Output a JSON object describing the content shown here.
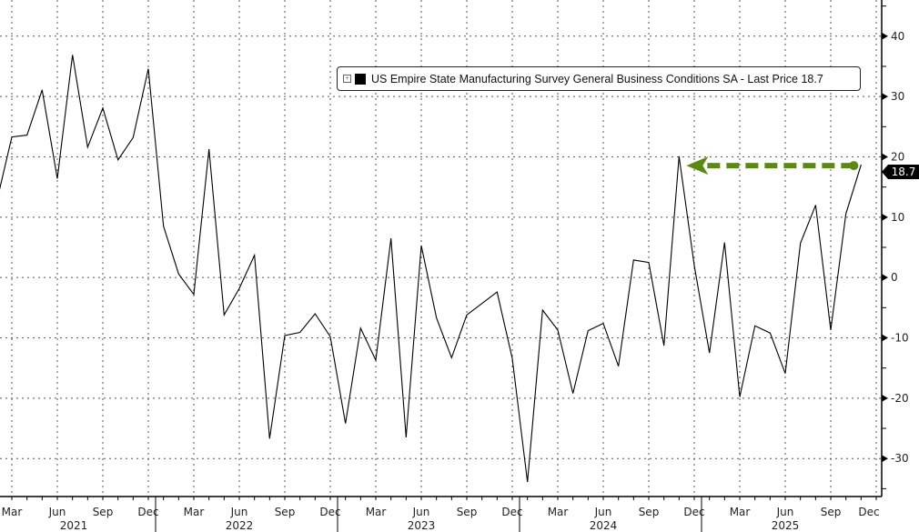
{
  "chart_data": {
    "type": "line",
    "title": "",
    "legend": {
      "label": "US Empire State Manufacturing Survey General Business Conditions SA - Last Price 18.7",
      "placement": "top-right"
    },
    "last_price_tag": "18.7",
    "ylim": [
      -36.3,
      46
    ],
    "yticks": [
      40,
      30,
      20,
      10,
      0,
      -10,
      -20,
      -30
    ],
    "y_axis_side": "right",
    "grid": true,
    "line_color": "#000000",
    "annotation": {
      "type": "dashed-arrow",
      "color": "#5b8a12",
      "from": "2025-11",
      "to": "2024-11",
      "value": 18.7
    },
    "x_start": "2021-02",
    "x_month_labels": [
      "Mar",
      "Jun",
      "Sep",
      "Dec"
    ],
    "x_year_labels": [
      "2021",
      "2022",
      "2023",
      "2024",
      "2025"
    ],
    "values": [
      12.5,
      23.3,
      23.6,
      31.1,
      16.4,
      36.9,
      21.6,
      28.1,
      19.5,
      23.2,
      34.6,
      8.5,
      0.6,
      -2.8,
      21.3,
      -6.2,
      -1.8,
      3.7,
      -26.7,
      -9.6,
      -9.1,
      -6.0,
      -9.8,
      -24.2,
      -8.4,
      -13.7,
      6.5,
      -26.5,
      5.3,
      -6.7,
      -13.3,
      -6.2,
      -4.3,
      -2.4,
      -13.4,
      -33.9,
      -5.4,
      -8.7,
      -19.2,
      -8.8,
      -7.6,
      -14.7,
      2.9,
      2.5,
      -11.3,
      20.1,
      2.0,
      -12.5,
      5.8,
      -19.8,
      -8.0,
      -9.2,
      -15.9,
      5.7,
      12.0,
      -8.7,
      10.6,
      18.7
    ]
  }
}
